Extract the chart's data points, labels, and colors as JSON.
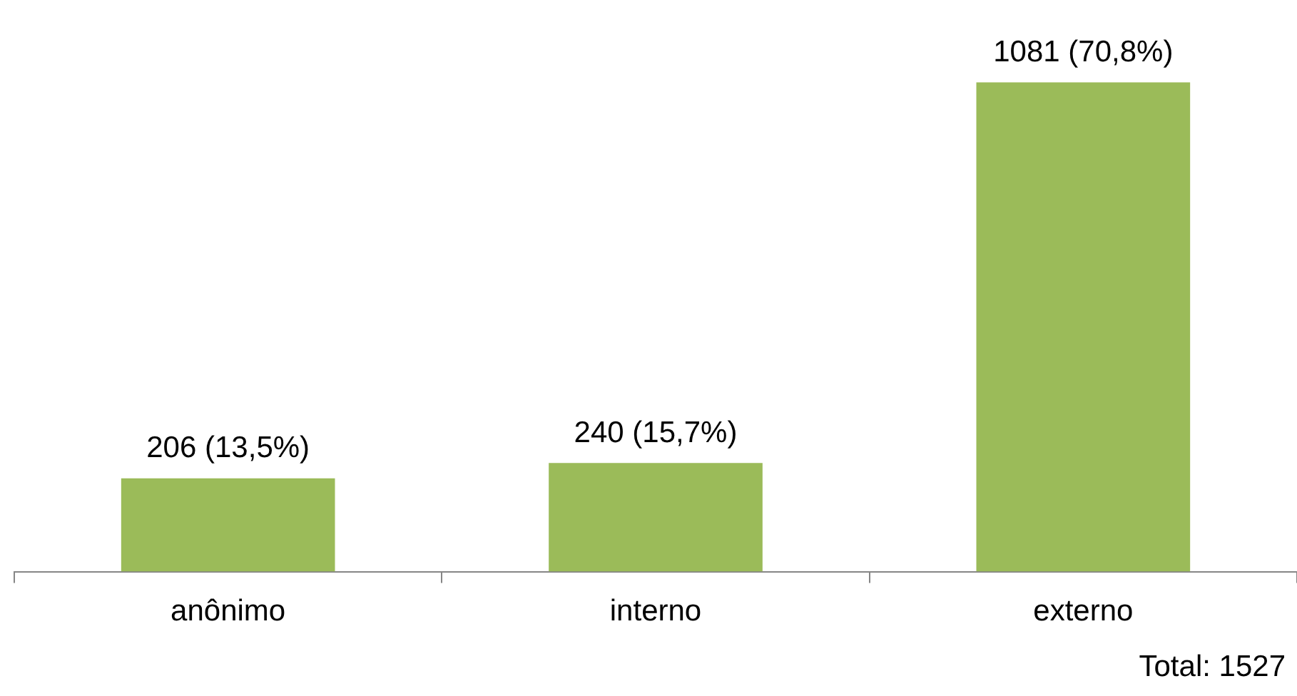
{
  "chart_data": {
    "type": "bar",
    "categories": [
      "anônimo",
      "interno",
      "externo"
    ],
    "values": [
      206,
      240,
      1081
    ],
    "color": "#9bbb59",
    "value_labels": [
      "206 (13,5%)",
      "240 (15,7%)",
      "1081 (70,8%)"
    ],
    "grid": false,
    "legend": false,
    "tick_labels": "x",
    "annotations": [
      "Total: 1527"
    ]
  }
}
